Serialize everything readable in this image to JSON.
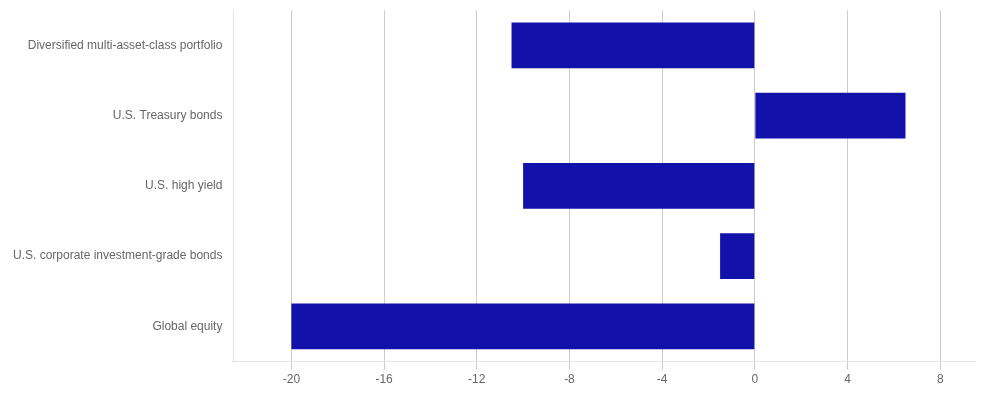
{
  "chart_data": {
    "type": "bar",
    "orientation": "horizontal",
    "categories": [
      "Global equity",
      "U.S. corporate investment-grade bonds",
      "U.S. high yield",
      "U.S. Treasury bonds",
      "Diversified multi-asset-class portfolio"
    ],
    "values": [
      -20.0,
      -1.5,
      -10.0,
      6.5,
      -10.5
    ],
    "color": "#1212AA",
    "xlim": [
      -22.5,
      9.5
    ],
    "xticks": [
      -20,
      -16,
      -12,
      -8,
      -4,
      0,
      4,
      8
    ],
    "grid": true
  }
}
